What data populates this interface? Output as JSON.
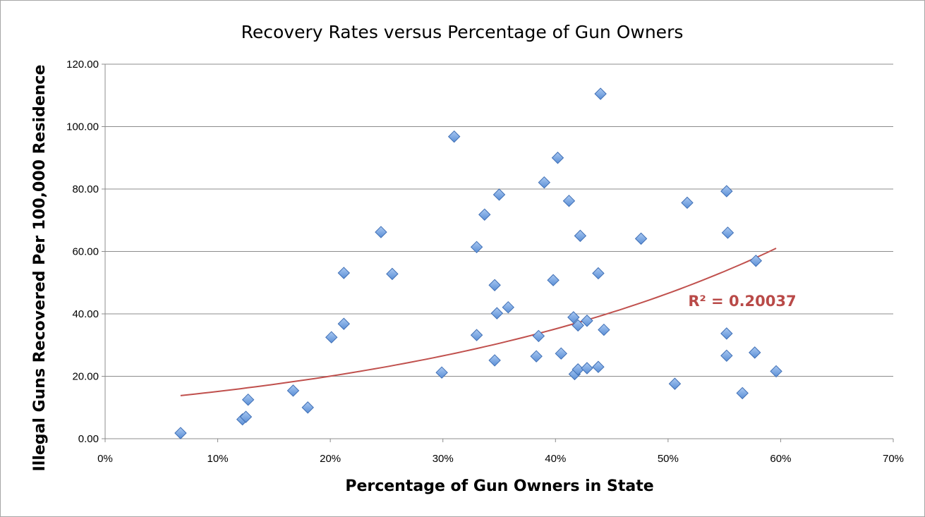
{
  "chart_data": {
    "type": "scatter",
    "title": "Recovery Rates versus Percentage of Gun Owners",
    "xlabel": "Percentage of Gun Owners in State",
    "ylabel": "Illegal Guns Recovered Per 100,000 Residence",
    "xlim": [
      0,
      0.7
    ],
    "ylim": [
      0,
      120
    ],
    "x_ticks": [
      0,
      0.1,
      0.2,
      0.3,
      0.4,
      0.5,
      0.6,
      0.7
    ],
    "x_tick_labels": [
      "0%",
      "10%",
      "20%",
      "30%",
      "40%",
      "50%",
      "60%",
      "70%"
    ],
    "y_ticks": [
      0,
      20,
      40,
      60,
      80,
      100,
      120
    ],
    "y_tick_labels": [
      "0.00",
      "20.00",
      "40.00",
      "60.00",
      "80.00",
      "100.00",
      "120.00"
    ],
    "grid": "horizontal",
    "legend": "none",
    "marker_color": "#5b8fd6",
    "trend_color": "#c0504d",
    "points": [
      [
        0.067,
        1.8
      ],
      [
        0.122,
        6.2
      ],
      [
        0.125,
        7.0
      ],
      [
        0.127,
        12.5
      ],
      [
        0.167,
        15.4
      ],
      [
        0.18,
        10.0
      ],
      [
        0.201,
        32.5
      ],
      [
        0.212,
        53.1
      ],
      [
        0.212,
        36.8
      ],
      [
        0.245,
        66.2
      ],
      [
        0.255,
        52.8
      ],
      [
        0.299,
        21.2
      ],
      [
        0.31,
        96.8
      ],
      [
        0.33,
        61.4
      ],
      [
        0.33,
        33.2
      ],
      [
        0.337,
        71.8
      ],
      [
        0.346,
        49.2
      ],
      [
        0.346,
        25.1
      ],
      [
        0.348,
        40.2
      ],
      [
        0.35,
        78.2
      ],
      [
        0.358,
        42.1
      ],
      [
        0.383,
        26.4
      ],
      [
        0.385,
        32.9
      ],
      [
        0.39,
        82.1
      ],
      [
        0.398,
        50.8
      ],
      [
        0.402,
        90.0
      ],
      [
        0.405,
        27.3
      ],
      [
        0.412,
        76.2
      ],
      [
        0.416,
        38.9
      ],
      [
        0.417,
        20.7
      ],
      [
        0.42,
        22.2
      ],
      [
        0.42,
        36.3
      ],
      [
        0.422,
        65.0
      ],
      [
        0.428,
        37.8
      ],
      [
        0.428,
        22.6
      ],
      [
        0.438,
        53.0
      ],
      [
        0.438,
        23.0
      ],
      [
        0.44,
        110.5
      ],
      [
        0.443,
        34.9
      ],
      [
        0.476,
        64.1
      ],
      [
        0.506,
        17.6
      ],
      [
        0.517,
        75.6
      ],
      [
        0.552,
        79.3
      ],
      [
        0.552,
        33.7
      ],
      [
        0.552,
        26.6
      ],
      [
        0.553,
        66.0
      ],
      [
        0.566,
        14.6
      ],
      [
        0.577,
        27.6
      ],
      [
        0.578,
        57.0
      ],
      [
        0.596,
        21.6
      ]
    ],
    "trendline": {
      "type": "exponential",
      "a": 11.43,
      "b": 2.81,
      "x_range": [
        0.067,
        0.596
      ],
      "r_squared_label": "R² = 0.20037"
    }
  }
}
